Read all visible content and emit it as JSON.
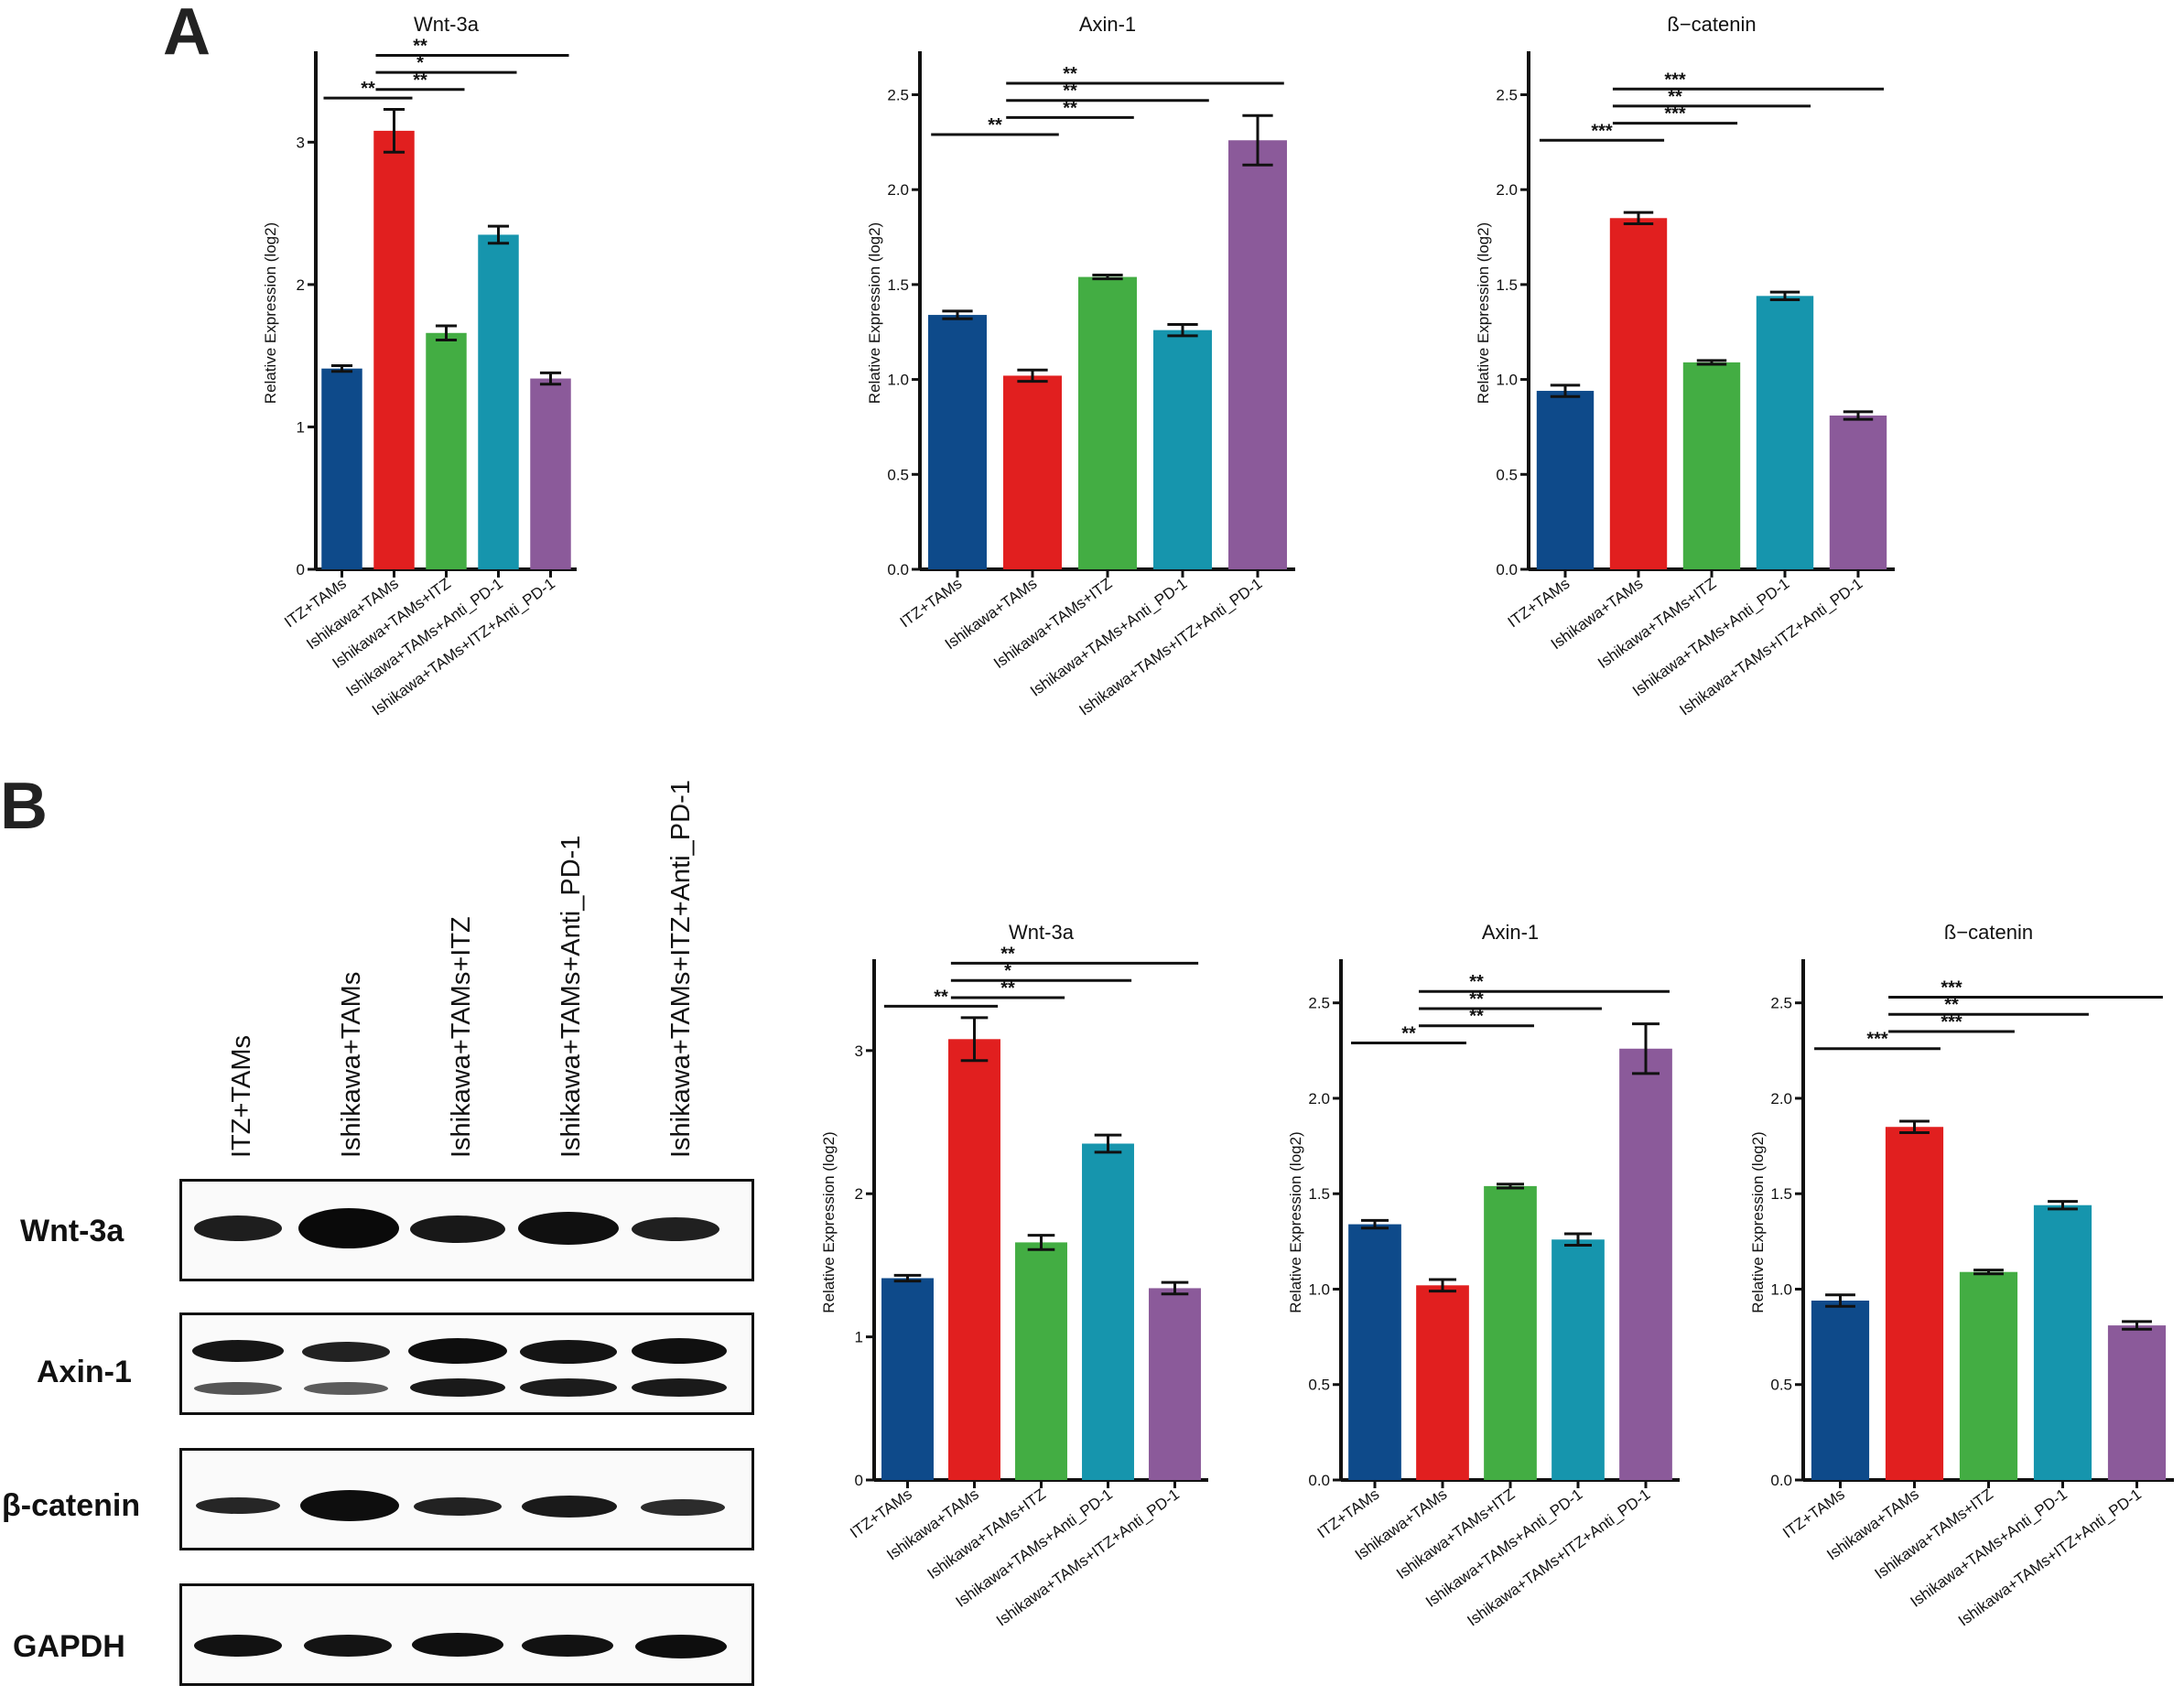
{
  "panels": {
    "a": "A",
    "b": "B"
  },
  "colors": [
    "#0e4a8a",
    "#e11f1f",
    "#43ad43",
    "#1695ad",
    "#8b5a9a"
  ],
  "chart_data": [
    {
      "type": "bar",
      "title": "Wnt-3a",
      "ylabel": "Relative Expression (log2)",
      "categories": [
        "ITZ+TAMs",
        "Ishikawa+TAMs",
        "Ishikawa+TAMs+ITZ",
        "Ishikawa+TAMs+Anti_PD-1",
        "Ishikawa+TAMs+ITZ+Anti_PD-1"
      ],
      "values": [
        1.41,
        3.08,
        1.66,
        2.35,
        1.34
      ],
      "errors": [
        0.02,
        0.15,
        0.05,
        0.06,
        0.04
      ],
      "ylim": [
        0,
        3.6
      ],
      "yticks": [
        "0",
        "1",
        "2",
        "3"
      ],
      "ytick_values": [
        0,
        1,
        2,
        3
      ],
      "significance": [
        {
          "from": 0,
          "to": 1,
          "label": "**",
          "y": 3.31
        },
        {
          "from": 1,
          "to": 2,
          "label": "**",
          "y": 3.37
        },
        {
          "from": 1,
          "to": 3,
          "label": "*",
          "y": 3.49
        },
        {
          "from": 1,
          "to": 4,
          "label": "**",
          "y": 3.61
        }
      ]
    },
    {
      "type": "bar",
      "title": "Axin-1",
      "ylabel": "Relative Expression (log2)",
      "categories": [
        "ITZ+TAMs",
        "Ishikawa+TAMs",
        "Ishikawa+TAMs+ITZ",
        "Ishikawa+TAMs+Anti_PD-1",
        "Ishikawa+TAMs+ITZ+Anti_PD-1"
      ],
      "values": [
        1.34,
        1.02,
        1.54,
        1.26,
        2.26
      ],
      "errors": [
        0.02,
        0.03,
        0.01,
        0.03,
        0.13
      ],
      "ylim": [
        0,
        2.7
      ],
      "yticks": [
        "0.0",
        "0.5",
        "1.0",
        "1.5",
        "2.0",
        "2.5"
      ],
      "ytick_values": [
        0,
        0.5,
        1,
        1.5,
        2,
        2.5
      ],
      "significance": [
        {
          "from": 0,
          "to": 1,
          "label": "**",
          "y": 2.29
        },
        {
          "from": 1,
          "to": 2,
          "label": "**",
          "y": 2.38
        },
        {
          "from": 1,
          "to": 3,
          "label": "**",
          "y": 2.47
        },
        {
          "from": 1,
          "to": 4,
          "label": "**",
          "y": 2.56
        }
      ]
    },
    {
      "type": "bar",
      "title": "ß−catenin",
      "ylabel": "Relative Expression (log2)",
      "categories": [
        "ITZ+TAMs",
        "Ishikawa+TAMs",
        "Ishikawa+TAMs+ITZ",
        "Ishikawa+TAMs+Anti_PD-1",
        "Ishikawa+TAMs+ITZ+Anti_PD-1"
      ],
      "values": [
        0.94,
        1.85,
        1.09,
        1.44,
        0.81
      ],
      "errors": [
        0.03,
        0.03,
        0.01,
        0.02,
        0.02
      ],
      "ylim": [
        0,
        2.7
      ],
      "yticks": [
        "0.0",
        "0.5",
        "1.0",
        "1.5",
        "2.0",
        "2.5"
      ],
      "ytick_values": [
        0,
        0.5,
        1,
        1.5,
        2,
        2.5
      ],
      "significance": [
        {
          "from": 0,
          "to": 1,
          "label": "***",
          "y": 2.26
        },
        {
          "from": 1,
          "to": 2,
          "label": "***",
          "y": 2.35
        },
        {
          "from": 1,
          "to": 3,
          "label": "**",
          "y": 2.44
        },
        {
          "from": 1,
          "to": 4,
          "label": "***",
          "y": 2.53
        }
      ]
    }
  ],
  "blot": {
    "lanes": [
      "ITZ+TAMs",
      "Ishikawa+TAMs",
      "Ishikawa+TAMs+ITZ",
      "Ishikawa+TAMs+Anti_PD-1",
      "Ishikawa+TAMs+ITZ+Anti_PD-1"
    ],
    "proteins": [
      "Wnt-3a",
      "Axin-1",
      "β-catenin",
      "GAPDH"
    ]
  }
}
